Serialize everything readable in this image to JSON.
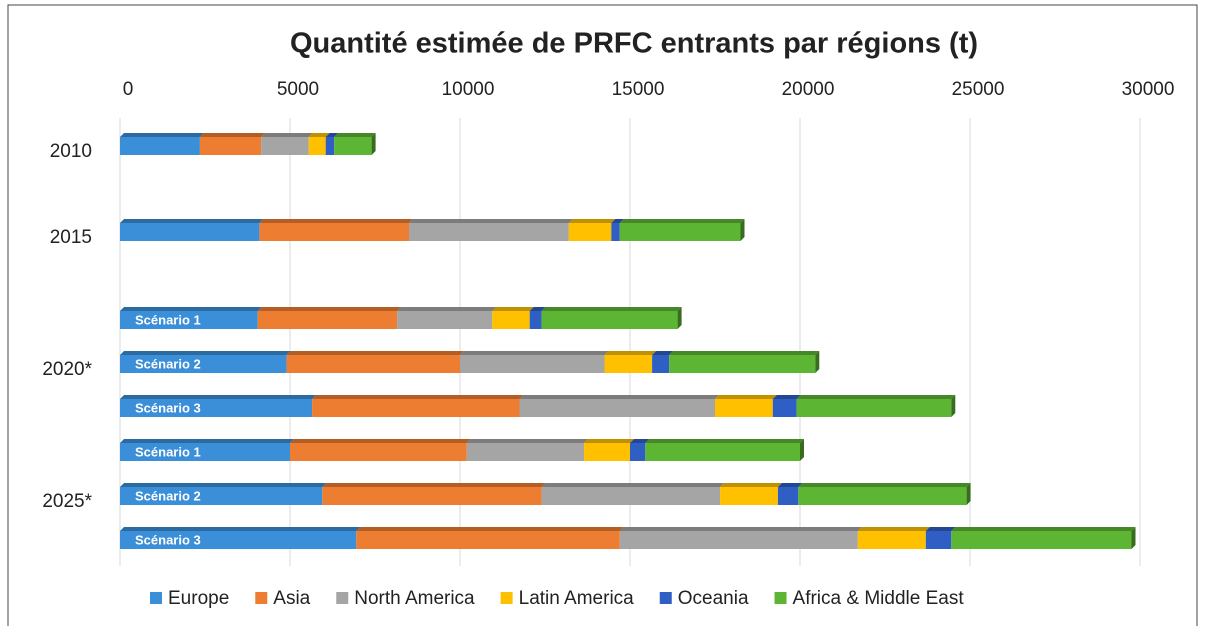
{
  "chart_data": {
    "type": "stacked_barh",
    "title": "Quantité estimée de PRFC entrants par régions (t)",
    "groups": [
      {
        "label": "2010",
        "count": 1
      },
      {
        "label": "2015",
        "count": 1
      },
      {
        "label": "2020*",
        "count": 3
      },
      {
        "label": "2025*",
        "count": 3
      }
    ],
    "categories": [
      null,
      null,
      "Scénario 1",
      "Scénario 2",
      "Scénario 3",
      "Scénario 1",
      "Scénario 2",
      "Scénario 3"
    ],
    "series": [
      {
        "name": "Europe",
        "color": "#3a8fd8",
        "values": [
          2350,
          4100,
          4050,
          4900,
          5650,
          5000,
          5950,
          6950
        ]
      },
      {
        "name": "Asia",
        "color": "#ed7d31",
        "values": [
          1800,
          4400,
          4100,
          5100,
          6100,
          5200,
          6450,
          7750
        ]
      },
      {
        "name": "North America",
        "color": "#a5a5a5",
        "values": [
          1400,
          4700,
          2800,
          4250,
          5750,
          3450,
          5250,
          7000
        ]
      },
      {
        "name": "Latin America",
        "color": "#ffc000",
        "values": [
          500,
          1250,
          1100,
          1400,
          1700,
          1350,
          1700,
          2000
        ]
      },
      {
        "name": "Oceania",
        "color": "#2f5fc4",
        "values": [
          250,
          250,
          350,
          500,
          700,
          450,
          600,
          750
        ]
      },
      {
        "name": "Africa & Middle East",
        "color": "#5db534",
        "values": [
          1100,
          3550,
          4000,
          4300,
          4550,
          4550,
          4950,
          5300
        ]
      }
    ],
    "xlim": [
      0,
      30000
    ],
    "xticks": [
      0,
      5000,
      10000,
      15000,
      20000,
      25000,
      30000
    ],
    "grid": true,
    "legend": "bottom"
  }
}
